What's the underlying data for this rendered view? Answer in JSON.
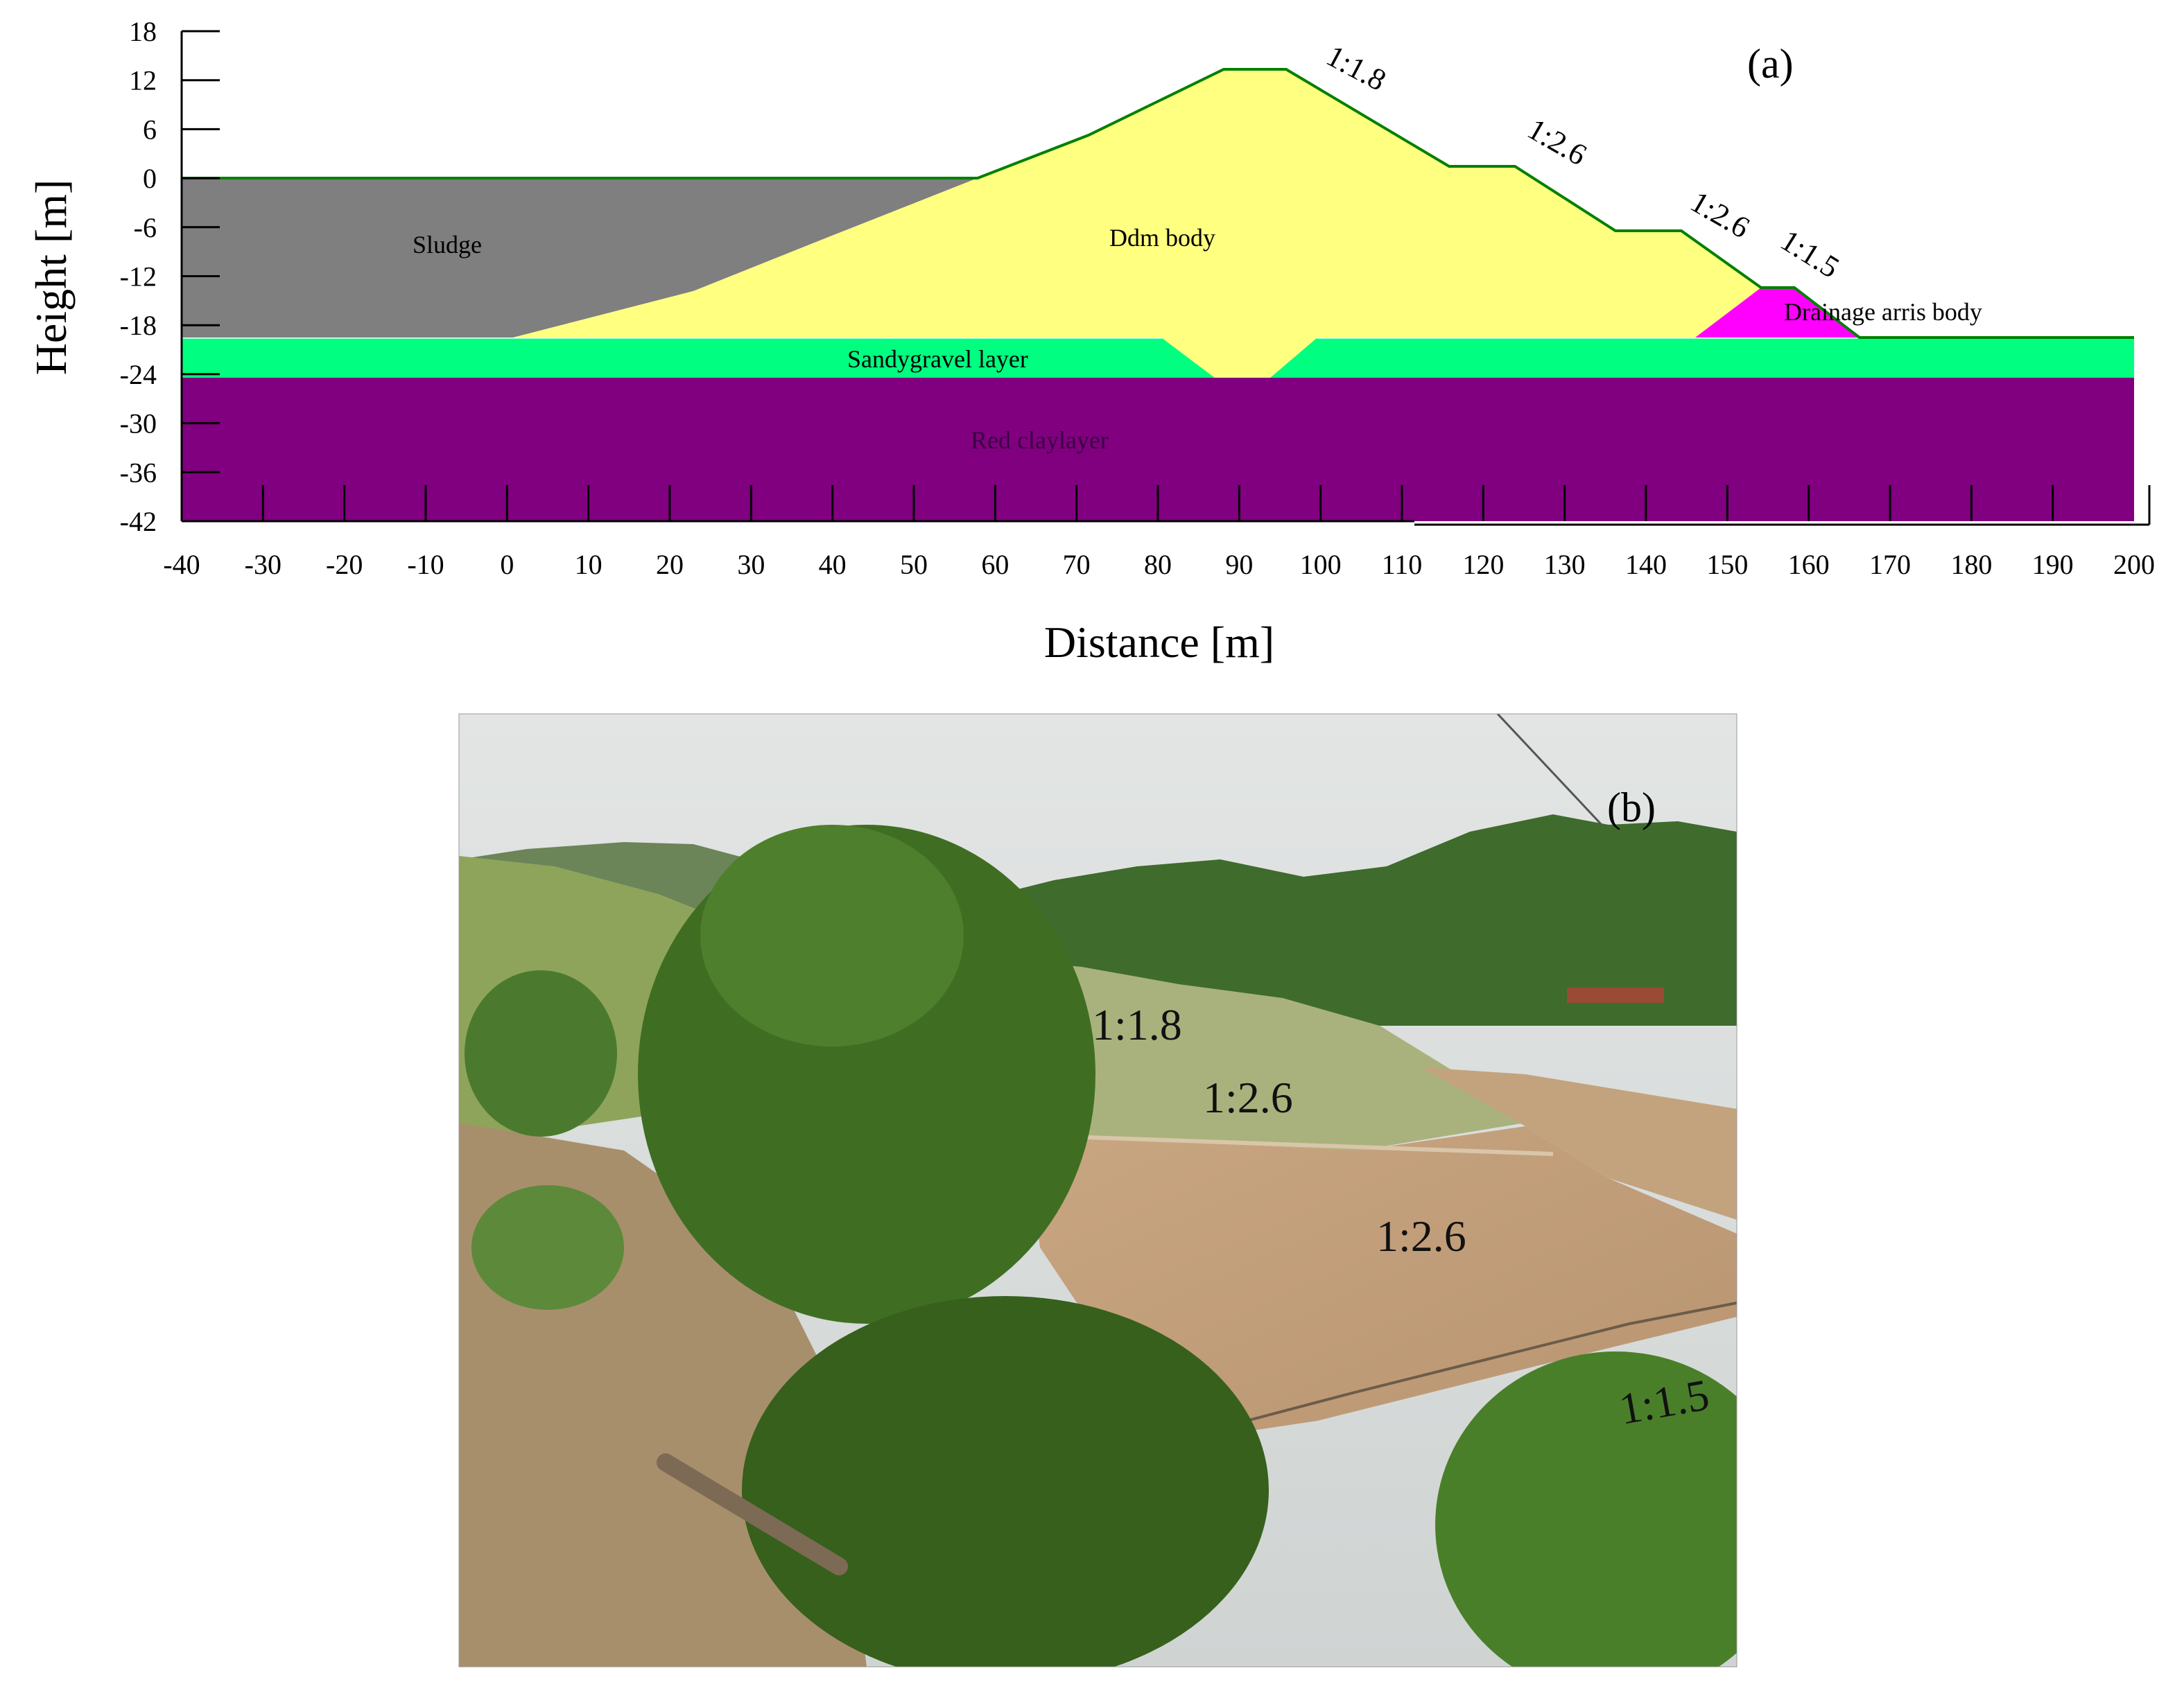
{
  "panel_a": {
    "label": "(a)",
    "x_axis": {
      "title": "Distance [m]",
      "range": [
        -40,
        200
      ],
      "ticks": [
        -40,
        -30,
        -20,
        -10,
        0,
        10,
        20,
        30,
        40,
        50,
        60,
        70,
        80,
        90,
        100,
        110,
        120,
        130,
        140,
        150,
        160,
        170,
        180,
        190,
        200
      ]
    },
    "y_axis": {
      "title": "Height [m]",
      "range": [
        -42,
        18
      ],
      "ticks": [
        18,
        12,
        6,
        0,
        -6,
        -12,
        -18,
        -24,
        -30,
        -36,
        -42
      ]
    },
    "regions": {
      "sludge": "Sludge",
      "dam_body": "Ddm body",
      "sandy_gravel": "Sandygravel layer",
      "red_clay": "Red claylayer",
      "drainage": "Drainage arris body"
    },
    "slope_labels": [
      "1:1.8",
      "1:2.6",
      "1:2.6",
      "1:1.5"
    ],
    "colors": {
      "sludge": "#7f7f7f",
      "dam_body": "#ffff80",
      "sandy_gravel": "#00ff80",
      "red_clay": "#800080",
      "drainage": "#ff00ff",
      "outline": "#008000"
    }
  },
  "panel_b": {
    "label": "(b)",
    "slope_labels": [
      "1:1.8",
      "1:2.6",
      "1:2.6",
      "1:1.5"
    ],
    "colors": {
      "sky": "#d8dcdc",
      "hills": "#3c6a2a",
      "grass_slope": "#a6b27a",
      "soil_slope": "#c8a27c",
      "trees": "#3f6e22"
    }
  }
}
